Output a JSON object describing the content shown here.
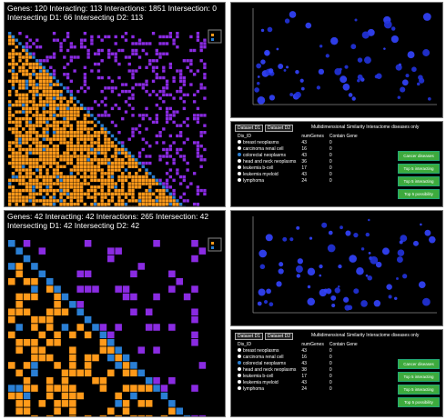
{
  "panels": [
    {
      "header": {
        "line1": "Genes: 120  Interacting: 113  Interactions: 1851  Intersection: 0",
        "line2": "Intersecting D1: 66  Intersecting D2: 113"
      }
    },
    {
      "header": {
        "line1": "Genes: 42  Interacting: 42  Interactions: 265  Intersection: 42",
        "line2": "Intersecting D1: 42  Intersecting D2: 42"
      }
    }
  ],
  "tables": [
    {
      "tabs": [
        "Dataset D1",
        "Dataset D2"
      ],
      "options": "Multidimensional Similarity  Interactome diseases only",
      "columns": [
        "Dis_ID",
        "numGenes",
        "Contain Gene"
      ],
      "rows": [
        [
          "breast neoplasms",
          43,
          0
        ],
        [
          "carcinoma renal cell",
          16,
          0
        ],
        [
          "colorectal neoplasms",
          43,
          0
        ],
        [
          "head and neck neoplasms",
          36,
          0
        ],
        [
          "leukemia b-cell",
          17,
          0
        ],
        [
          "leukemia myeloid",
          43,
          0
        ],
        [
          "lymphoma",
          24,
          0
        ]
      ],
      "buttons": [
        "Cancer diseases",
        "Top 5 interacting",
        "Top 5 interacting",
        "Top 5 possibility"
      ]
    },
    {
      "tabs": [
        "Dataset D1",
        "Dataset D2"
      ],
      "options": "Multidimensional Similarity  Interactome diseases only",
      "columns": [
        "Dis_ID",
        "numGenes",
        "Contain Gene"
      ],
      "rows": [
        [
          "breast neoplasms",
          43,
          0
        ],
        [
          "carcinoma renal cell",
          16,
          0
        ],
        [
          "colorectal neoplasms",
          43,
          0
        ],
        [
          "head and neck neoplasms",
          38,
          0
        ],
        [
          "leukemia b-cell",
          17,
          0
        ],
        [
          "leukemia myeloid",
          43,
          0
        ],
        [
          "lymphoma",
          24,
          0
        ]
      ],
      "buttons": [
        "Cancer diseases",
        "Top 5 interacting",
        "Top 5 interacting",
        "Top 5 possibility"
      ]
    }
  ]
}
